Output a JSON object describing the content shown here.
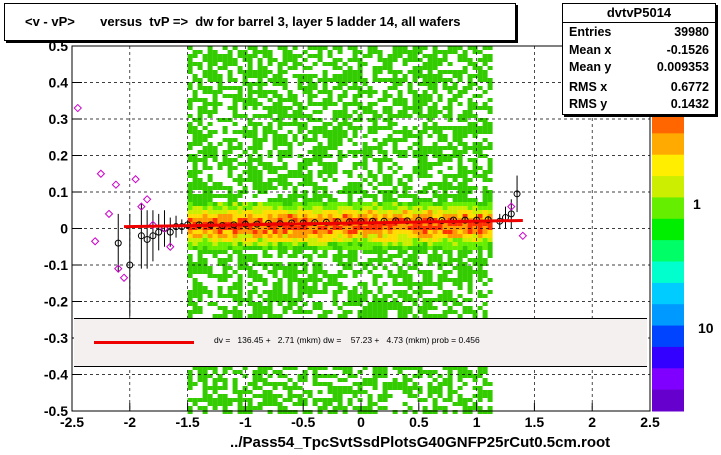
{
  "title": "<v - vP>       versus  tvP =>  dw for barrel 3, layer 5 ladder 14, all wafers",
  "stats": {
    "name": "dvtvP5014",
    "rows": [
      {
        "label": "Entries",
        "value": "39980"
      },
      {
        "label": "Mean x",
        "value": "-0.1526"
      },
      {
        "label": "Mean y",
        "value": "0.009353"
      },
      {
        "label": "RMS x",
        "value": "0.6772"
      },
      {
        "label": "RMS y",
        "value": "0.1432"
      }
    ]
  },
  "fit_text": "dv =   136.45 +   2.71 (mkm) dw =    57.23 +   4.73 (mkm) prob = 0.456",
  "file_label": "../Pass54_TpcSvtSsdPlotsG40GNFP25rCut0.5cm.root",
  "colors": {
    "fit_line": "#ee0000",
    "profile_marker": "#000000",
    "alt_marker": "#cc00cc"
  },
  "chart_data": {
    "type": "heatmap",
    "xlim": [
      -2.5,
      2.5
    ],
    "ylim": [
      -0.5,
      0.5
    ],
    "x_ticks": [
      "-2.5",
      "-2",
      "-1.5",
      "-1",
      "-0.5",
      "0",
      "0.5",
      "1",
      "1.5",
      "2",
      "2.5"
    ],
    "x_tick_values": [
      -2.5,
      -2,
      -1.5,
      -1,
      -0.5,
      0,
      0.5,
      1,
      1.5,
      2,
      2.5
    ],
    "y_ticks": [
      "-0.5",
      "-0.4",
      "-0.3",
      "-0.2",
      "-0.1",
      "0",
      "0.1",
      "0.2",
      "0.3",
      "0.4",
      "0.5"
    ],
    "y_tick_values": [
      -0.5,
      -0.4,
      -0.3,
      -0.2,
      -0.1,
      0,
      0.1,
      0.2,
      0.3,
      0.4,
      0.5
    ],
    "grid": true,
    "colorbar_labels": [
      "1",
      "10"
    ],
    "density_x_range": [
      -1.5,
      1.1
    ],
    "fit": {
      "x": [
        -2.05,
        1.4
      ],
      "y": [
        0.005,
        0.022
      ]
    },
    "profile_points": {
      "x": [
        -2.1,
        -2.0,
        -1.9,
        -1.85,
        -1.8,
        -1.75,
        -1.7,
        -1.65,
        -1.6,
        -1.55,
        -1.5,
        -1.4,
        -1.3,
        -1.2,
        -1.1,
        -1.0,
        -0.9,
        -0.8,
        -0.7,
        -0.6,
        -0.5,
        -0.4,
        -0.3,
        -0.2,
        -0.1,
        0,
        0.1,
        0.2,
        0.3,
        0.4,
        0.5,
        0.6,
        0.7,
        0.8,
        0.9,
        1.0,
        1.1,
        1.2,
        1.25,
        1.3,
        1.35
      ],
      "y": [
        -0.04,
        -0.1,
        -0.02,
        -0.03,
        -0.02,
        -0.01,
        0.0,
        -0.01,
        0.005,
        0.005,
        0.01,
        0.01,
        0.01,
        0.008,
        0.01,
        0.012,
        0.012,
        0.014,
        0.013,
        0.015,
        0.015,
        0.016,
        0.017,
        0.018,
        0.018,
        0.019,
        0.02,
        0.02,
        0.021,
        0.021,
        0.022,
        0.022,
        0.022,
        0.023,
        0.023,
        0.023,
        0.024,
        0.02,
        0.03,
        0.04,
        0.095
      ],
      "err": [
        0.08,
        0.14,
        0.09,
        0.08,
        0.07,
        0.05,
        0.05,
        0.04,
        0.03,
        0.02,
        0.01,
        0.008,
        0.006,
        0.005,
        0.005,
        0.004,
        0.004,
        0.004,
        0.004,
        0.004,
        0.004,
        0.004,
        0.004,
        0.004,
        0.004,
        0.004,
        0.004,
        0.004,
        0.004,
        0.004,
        0.004,
        0.004,
        0.004,
        0.005,
        0.006,
        0.007,
        0.01,
        0.02,
        0.03,
        0.04,
        0.05
      ]
    },
    "alt_points": {
      "x": [
        -2.45,
        -2.3,
        -2.25,
        -2.18,
        -2.1,
        -2.05,
        -1.95,
        -1.9,
        -1.85,
        -1.8,
        -1.7,
        -1.65,
        1.3,
        1.4,
        -2.12
      ],
      "y": [
        0.33,
        -0.035,
        0.15,
        0.04,
        -0.11,
        -0.135,
        0.135,
        0.06,
        0.08,
        0.01,
        0.0,
        -0.05,
        0.06,
        -0.02,
        0.12
      ]
    }
  }
}
